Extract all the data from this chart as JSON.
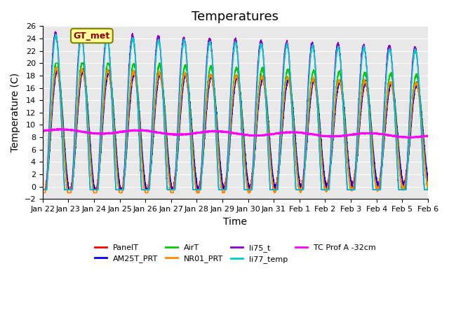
{
  "title": "Temperatures",
  "xlabel": "Time",
  "ylabel": "Temperature (C)",
  "ylim": [
    -2,
    26
  ],
  "yticks": [
    -2,
    0,
    2,
    4,
    6,
    8,
    10,
    12,
    14,
    16,
    18,
    20,
    22,
    24,
    26
  ],
  "annotation_text": "GT_met",
  "annotation_color": "#8B0000",
  "annotation_bg": "#FFFF99",
  "annotation_border": "#808000",
  "series": {
    "PanelT": {
      "color": "#FF0000",
      "lw": 1.2
    },
    "AM25T_PRT": {
      "color": "#0000FF",
      "lw": 1.2
    },
    "AirT": {
      "color": "#00CC00",
      "lw": 1.2
    },
    "NR01_PRT": {
      "color": "#FF8800",
      "lw": 1.2
    },
    "li75_t": {
      "color": "#8800CC",
      "lw": 1.2
    },
    "li77_temp": {
      "color": "#00CCCC",
      "lw": 1.2
    },
    "TC Prof A -32cm": {
      "color": "#FF00FF",
      "lw": 1.5
    }
  },
  "bg_color": "#E8E8E8",
  "fig_bg": "#FFFFFF",
  "n_points": 3600,
  "x_tick_labels": [
    "Jan 22",
    "Jan 23",
    "Jan 24",
    "Jan 25",
    "Jan 26",
    "Jan 27",
    "Jan 28",
    "Jan 29",
    "Jan 30",
    "Jan 31",
    "Feb 1",
    "Feb 2",
    "Feb 3",
    "Feb 4",
    "Feb 5",
    "Feb 6"
  ],
  "title_fontsize": 13,
  "axis_label_fontsize": 10,
  "tick_fontsize": 8
}
